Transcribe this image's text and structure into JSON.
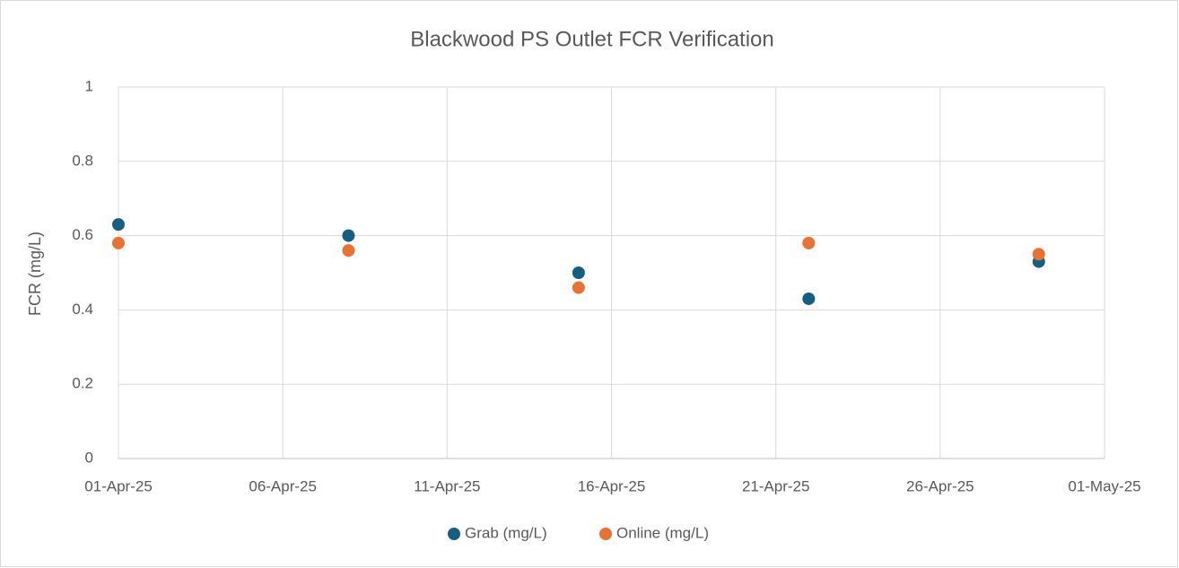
{
  "chart_data": {
    "type": "scatter",
    "title": "Blackwood PS Outlet FCR Verification",
    "y_label": "FCR (mg/L)",
    "x": [
      "2025-04-01",
      "2025-04-08",
      "2025-04-15",
      "2025-04-22",
      "2025-04-29"
    ],
    "series": [
      {
        "name": "Grab (mg/L)",
        "color": "#156082",
        "values": [
          0.63,
          0.6,
          0.5,
          0.43,
          0.53
        ]
      },
      {
        "name": "Online (mg/L)",
        "color": "#E97132",
        "values": [
          0.58,
          0.56,
          0.46,
          0.58,
          0.55
        ]
      }
    ],
    "xlim": [
      "2025-04-01",
      "2025-05-01"
    ],
    "xticks": [
      {
        "value": "2025-04-01",
        "label": "01-Apr-25"
      },
      {
        "value": "2025-04-06",
        "label": "06-Apr-25"
      },
      {
        "value": "2025-04-11",
        "label": "11-Apr-25"
      },
      {
        "value": "2025-04-16",
        "label": "16-Apr-25"
      },
      {
        "value": "2025-04-21",
        "label": "21-Apr-25"
      },
      {
        "value": "2025-04-26",
        "label": "26-Apr-25"
      },
      {
        "value": "2025-05-01",
        "label": "01-May-25"
      }
    ],
    "ylim": [
      0,
      1
    ],
    "yticks": [
      0,
      0.2,
      0.4,
      0.6,
      0.8,
      1
    ],
    "grid": true,
    "legend": "bottom"
  }
}
